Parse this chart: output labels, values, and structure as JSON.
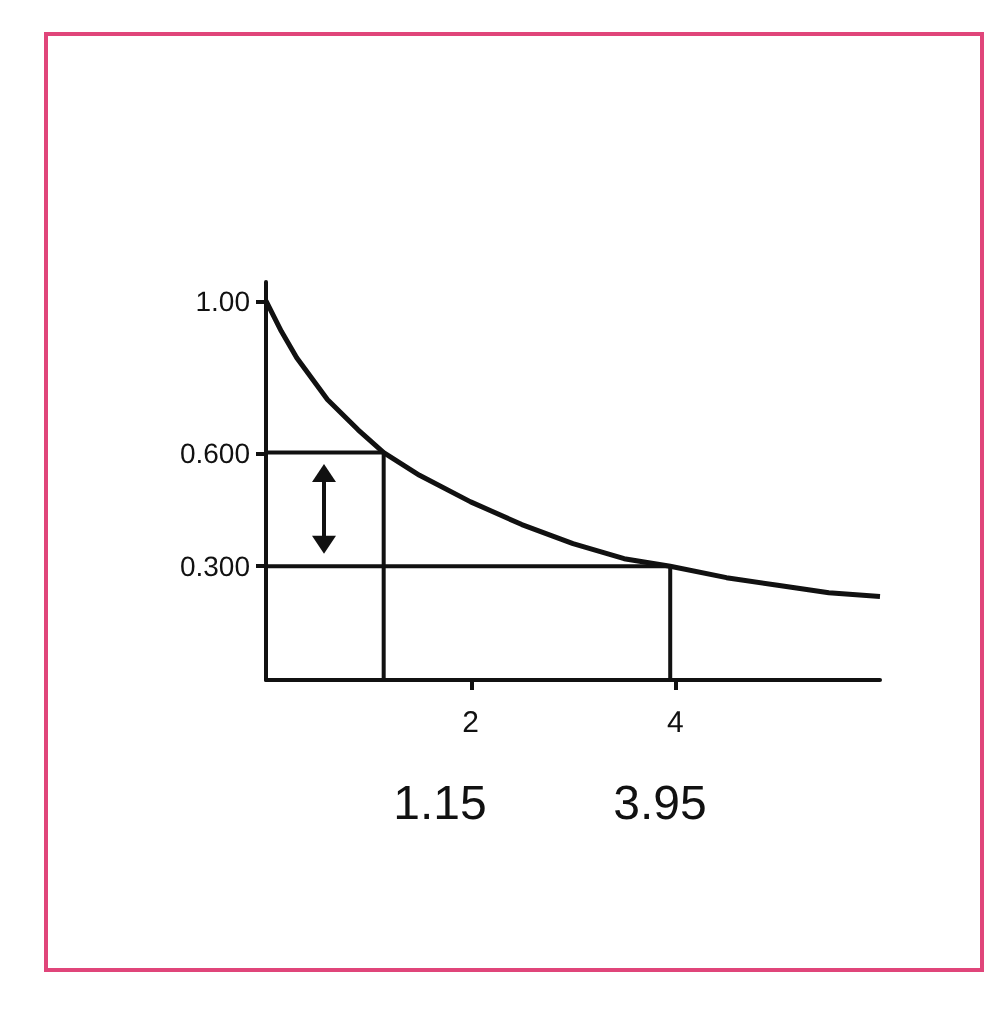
{
  "chart_data": {
    "type": "line",
    "xlim": [
      0,
      6
    ],
    "ylim": [
      0,
      1.05
    ],
    "xticks": [
      2,
      4
    ],
    "yticks": [
      {
        "value": 0.3,
        "label": "0.300"
      },
      {
        "value": 0.6,
        "label": "0.600"
      },
      {
        "value": 1,
        "label": "1.00"
      }
    ],
    "grid": false,
    "marker": "none",
    "line_style": "solid",
    "series": [
      {
        "color": "#111111",
        "x": [
          0,
          0.15,
          0.3,
          0.6,
          0.9,
          1.15,
          1.5,
          2,
          2.5,
          3,
          3.5,
          3.95,
          4.5,
          5,
          5.5,
          6
        ],
        "values": [
          1,
          0.92,
          0.85,
          0.74,
          0.66,
          0.6,
          0.54,
          0.47,
          0.41,
          0.36,
          0.32,
          0.3,
          0.27,
          0.25,
          0.23,
          0.22
        ]
      },
      {
        "color": "#111111",
        "x": [
          0,
          1.15,
          1.15
        ],
        "values": [
          0.6,
          0.6,
          0
        ]
      },
      {
        "color": "#111111",
        "x": [
          0,
          3.95,
          3.95
        ],
        "values": [
          0.3,
          0.3,
          0
        ]
      }
    ],
    "annotations": [
      "1.15",
      "3.95"
    ]
  }
}
